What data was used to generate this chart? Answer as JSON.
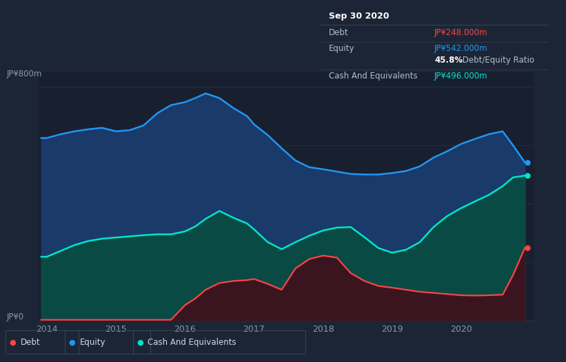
{
  "bg_color": "#1c2535",
  "plot_bg_color": "#182030",
  "grid_color": "#253545",
  "equity_color": "#2196f3",
  "equity_fill": "#1a3a6a",
  "cash_color": "#00e5cc",
  "cash_fill": "#0a4a44",
  "debt_color": "#ff4444",
  "debt_fill": "#3a1520",
  "ylabel_top": "JP¥800m",
  "ylabel_bottom": "JP¥0",
  "tooltip_title": "Sep 30 2020",
  "tooltip_debt_label": "Debt",
  "tooltip_debt_value": "JP¥248.000m",
  "tooltip_equity_label": "Equity",
  "tooltip_equity_value": "JP¥542.000m",
  "tooltip_ratio_bold": "45.8%",
  "tooltip_ratio_text": " Debt/Equity Ratio",
  "tooltip_cash_label": "Cash And Equivalents",
  "tooltip_cash_value": "JP¥496.000m",
  "legend_debt": "Debt",
  "legend_equity": "Equity",
  "legend_cash": "Cash And Equivalents",
  "x_years": [
    2013.92,
    2014.0,
    2014.2,
    2014.4,
    2014.6,
    2014.8,
    2015.0,
    2015.2,
    2015.4,
    2015.6,
    2015.8,
    2016.0,
    2016.15,
    2016.3,
    2016.5,
    2016.7,
    2016.9,
    2017.0,
    2017.2,
    2017.4,
    2017.6,
    2017.8,
    2018.0,
    2018.2,
    2018.4,
    2018.6,
    2018.8,
    2019.0,
    2019.2,
    2019.4,
    2019.6,
    2019.8,
    2020.0,
    2020.2,
    2020.4,
    2020.6,
    2020.75,
    2020.92
  ],
  "equity": [
    625,
    625,
    638,
    648,
    655,
    660,
    648,
    652,
    668,
    710,
    738,
    748,
    762,
    778,
    762,
    728,
    700,
    672,
    635,
    590,
    548,
    525,
    518,
    510,
    502,
    500,
    500,
    505,
    512,
    528,
    558,
    580,
    605,
    622,
    638,
    648,
    600,
    542
  ],
  "cash": [
    218,
    218,
    238,
    258,
    272,
    280,
    284,
    288,
    292,
    295,
    295,
    305,
    322,
    348,
    375,
    352,
    332,
    312,
    268,
    244,
    268,
    290,
    308,
    318,
    320,
    285,
    248,
    232,
    242,
    268,
    320,
    358,
    385,
    408,
    430,
    460,
    490,
    496
  ],
  "debt": [
    2,
    2,
    2,
    2,
    2,
    2,
    2,
    2,
    2,
    2,
    2,
    52,
    75,
    105,
    128,
    135,
    138,
    142,
    125,
    105,
    178,
    210,
    222,
    215,
    162,
    135,
    118,
    112,
    105,
    98,
    94,
    90,
    86,
    85,
    86,
    88,
    155,
    248
  ],
  "xtick_years": [
    2014,
    2015,
    2016,
    2017,
    2018,
    2019,
    2020
  ],
  "ylim": [
    0,
    850
  ],
  "xlim": [
    2013.88,
    2021.05
  ]
}
